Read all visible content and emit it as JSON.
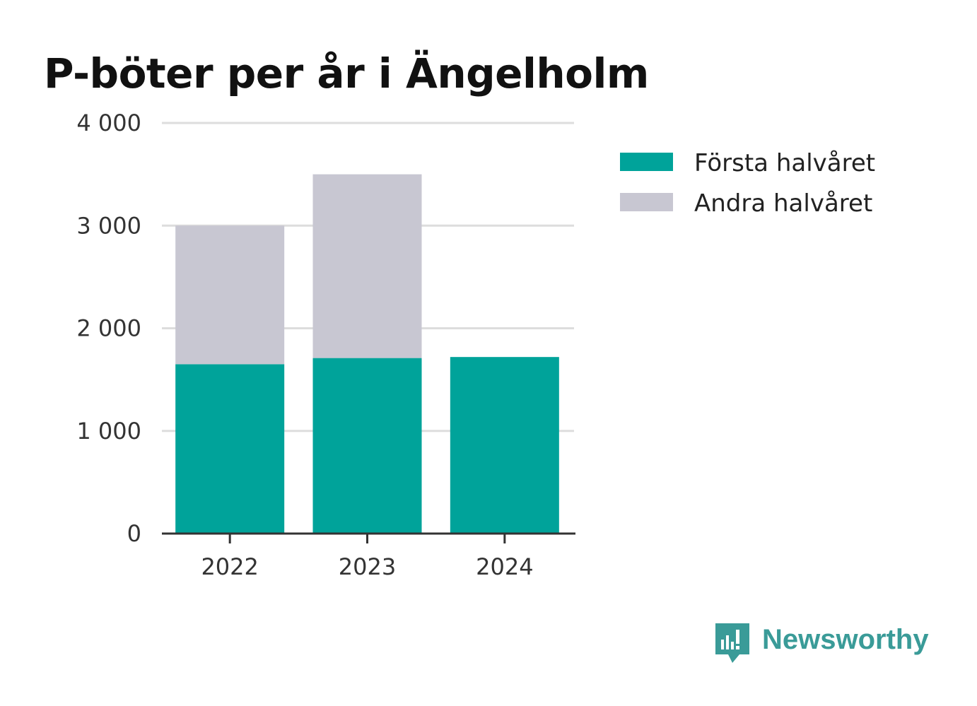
{
  "chart_data": {
    "type": "bar",
    "stacked": true,
    "title": "P-böter per år i Ängelholm",
    "xlabel": "",
    "ylabel": "",
    "categories": [
      "2022",
      "2023",
      "2024"
    ],
    "series": [
      {
        "name": "Första halvåret",
        "color": "#00a39a",
        "values": [
          1650,
          1710,
          1720
        ]
      },
      {
        "name": "Andra halvåret",
        "color": "#c8c7d2",
        "values": [
          1350,
          1790,
          0
        ]
      }
    ],
    "ylim": [
      0,
      4000
    ],
    "yticks": [
      0,
      1000,
      2000,
      3000,
      4000
    ],
    "ytick_labels": [
      "0",
      "1 000",
      "2 000",
      "3 000",
      "4 000"
    ],
    "grid": true,
    "legend_position": "right"
  },
  "brand": {
    "name": "Newsworthy",
    "color": "#3a9b98",
    "icon": "newsworthy-logo-icon"
  }
}
